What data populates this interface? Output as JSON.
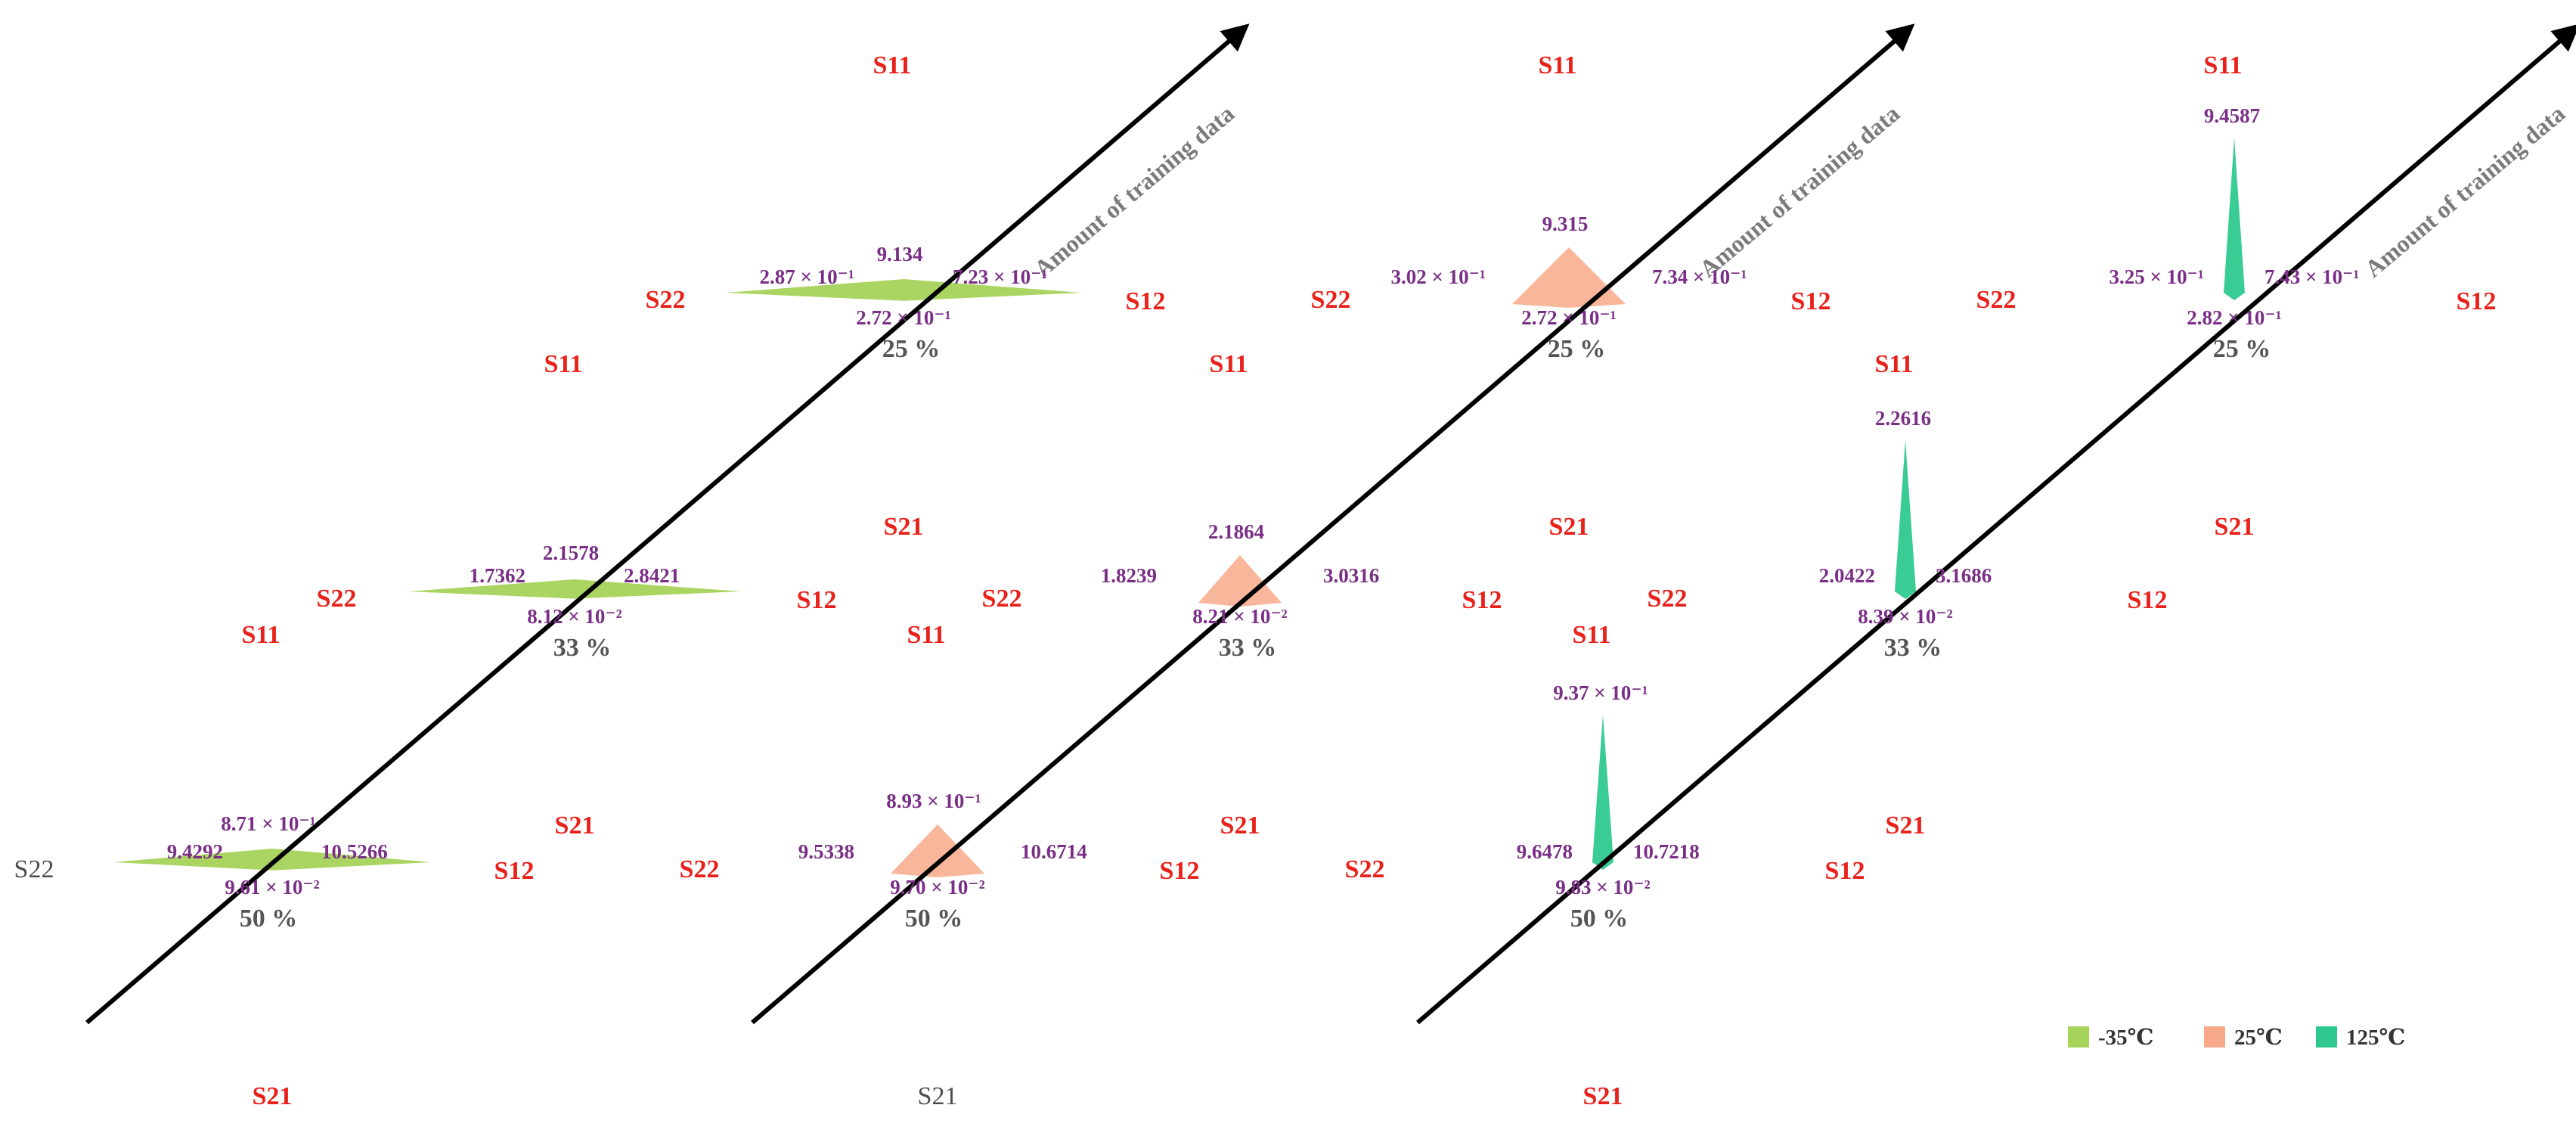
{
  "chart_data": {
    "type": "radar-3d",
    "axis_label": "Amount of training data",
    "legend": [
      {
        "label": "-35℃",
        "color": "#a6d35a"
      },
      {
        "label": "25℃",
        "color": "#f7a98a"
      },
      {
        "label": "125℃",
        "color": "#2fc98f"
      }
    ],
    "levels": [
      "25 %",
      "33 %",
      "50 %"
    ],
    "panels": [
      {
        "temperature": "-35℃",
        "color": "#a6d35a",
        "slices": [
          {
            "level": "25 %",
            "S11": 9.134,
            "S22": 0.287,
            "S12": 0.723,
            "S21": 0.272,
            "labels": {
              "S11": "9.134",
              "S22": "2.87 × 10⁻¹",
              "S12": "7.23 × 10⁻¹",
              "S21": "2.72 × 10⁻¹"
            }
          },
          {
            "level": "33 %",
            "S11": 2.1578,
            "S22": 1.7362,
            "S12": 2.8421,
            "S21": 0.0812,
            "labels": {
              "S11": "2.1578",
              "S22": "1.7362",
              "S12": "2.8421",
              "S21": "8.12 × 10⁻²"
            }
          },
          {
            "level": "50 %",
            "S11": 0.871,
            "S22": 9.4292,
            "S12": 10.5266,
            "S21": 0.0961,
            "labels": {
              "S11": "8.71 × 10⁻¹",
              "S22": "9.4292",
              "S12": "10.5266",
              "S21": "9.61 × 10⁻²"
            }
          }
        ]
      },
      {
        "temperature": "25℃",
        "color": "#f7a98a",
        "slices": [
          {
            "level": "25 %",
            "S11": 9.315,
            "S22": 0.302,
            "S12": 0.734,
            "S21": 0.272,
            "labels": {
              "S11": "9.315",
              "S22": "3.02 × 10⁻¹",
              "S12": "7.34 × 10⁻¹",
              "S21": "2.72 × 10⁻¹"
            }
          },
          {
            "level": "33 %",
            "S11": 2.1864,
            "S22": 1.8239,
            "S12": 3.0316,
            "S21": 0.0821,
            "labels": {
              "S11": "2.1864",
              "S22": "1.8239",
              "S12": "3.0316",
              "S21": "8.21 × 10⁻²"
            }
          },
          {
            "level": "50 %",
            "S11": 0.893,
            "S22": 9.5338,
            "S12": 10.6714,
            "S21": 0.097,
            "labels": {
              "S11": "8.93 × 10⁻¹",
              "S22": "9.5338",
              "S12": "10.6714",
              "S21": "9.70 × 10⁻²"
            }
          }
        ]
      },
      {
        "temperature": "125℃",
        "color": "#2fc98f",
        "slices": [
          {
            "level": "25 %",
            "S11": 9.4587,
            "S22": 0.325,
            "S12": 0.743,
            "S21": 0.282,
            "labels": {
              "S11": "9.4587",
              "S22": "3.25 × 10⁻¹",
              "S12": "7.43 × 10⁻¹",
              "S21": "2.82 × 10⁻¹"
            }
          },
          {
            "level": "33 %",
            "S11": 2.2616,
            "S22": 2.0422,
            "S12": 3.1686,
            "S21": 0.0839,
            "labels": {
              "S11": "2.2616",
              "S22": "2.0422",
              "S12": "3.1686",
              "S21": "8.39 × 10⁻²"
            }
          },
          {
            "level": "50 %",
            "S11": 0.937,
            "S22": 9.6478,
            "S12": 10.7218,
            "S21": 0.0983,
            "labels": {
              "S11": "9.37 × 10⁻¹",
              "S22": "9.6478",
              "S12": "10.7218",
              "S21": "9.83 × 10⁻²"
            }
          }
        ]
      }
    ]
  }
}
